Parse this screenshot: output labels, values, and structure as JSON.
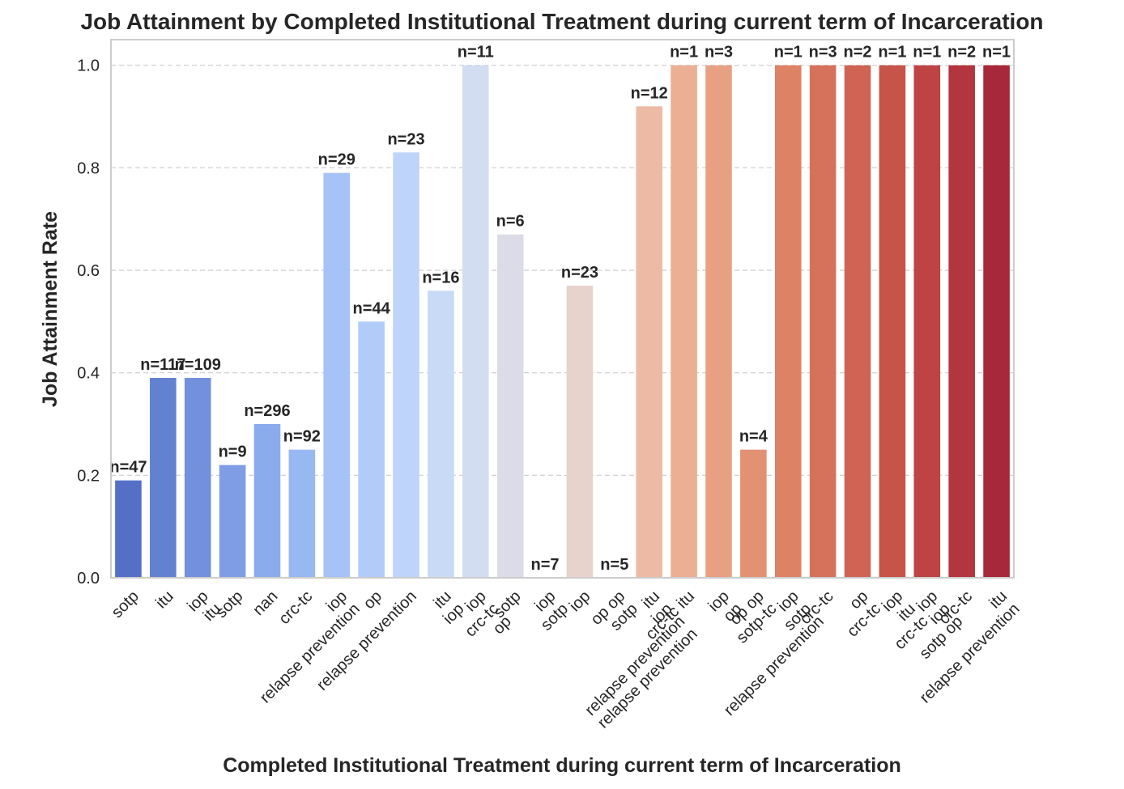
{
  "chart_data": {
    "type": "bar",
    "title": "Job Attainment by Completed Institutional Treatment during current term of Incarceration",
    "xlabel": "Completed Institutional Treatment during current term of Incarceration",
    "ylabel": "Job Attainment Rate",
    "ylim": [
      0,
      1.05
    ],
    "yticks": [
      "0.0",
      "0.2",
      "0.4",
      "0.6",
      "0.8",
      "1.0"
    ],
    "grid": "y-dashed",
    "categories": [
      "sotp",
      "itu",
      "iop\nitu",
      "sotp",
      "nan",
      "crc-tc",
      "iop\nrelapse prevention",
      "op",
      "relapse prevention",
      "itu\niop",
      "iop\ncrc-tc\nop",
      "sotp",
      "iop\nsotp",
      "iop",
      "op op\nsotp",
      "itu\niop\nrelapse prevention\nrelapse prevention",
      "crc-tc itu",
      "iop\nop",
      "op op\nsotp-tc",
      "iop\nsotp\nrelapse prevention",
      "crc-tc",
      "op\ncrc-tc",
      "iop\nitu\ncrc-tc",
      "iop\niop\nsotp op",
      "crc-tc",
      "itu\nrelapse prevention"
    ],
    "values": [
      0.19,
      0.39,
      0.39,
      0.22,
      0.3,
      0.25,
      0.79,
      0.5,
      0.83,
      0.56,
      1.0,
      0.67,
      0.0,
      0.57,
      0.0,
      0.92,
      1.0,
      1.0,
      0.25,
      1.0,
      1.0,
      1.0,
      1.0,
      1.0,
      1.0,
      1.0
    ],
    "data_labels": [
      "n=47",
      "n=117",
      "n=109",
      "n=9",
      "n=296",
      "n=92",
      "n=29",
      "n=44",
      "n=23",
      "n=16",
      "n=11",
      "n=6",
      "n=7",
      "n=23",
      "n=5",
      "n=12",
      "n=1",
      "n=3",
      "n=4",
      "n=1",
      "n=3",
      "n=2",
      "n=1",
      "n=1",
      "n=2",
      "n=1"
    ],
    "colors": [
      "#5470c6",
      "#6381d1",
      "#7290dc",
      "#7f9de4",
      "#8bacec",
      "#98b8f2",
      "#a5c3f6",
      "#b2ccf9",
      "#bfd4fa",
      "#c9daf7",
      "#d3ddf1",
      "#dcdce8",
      "#e2d9d9",
      "#e8d3cc",
      "#ecc7b7",
      "#edbba5",
      "#ecaf94",
      "#e8a083",
      "#e39173",
      "#de8266",
      "#d6725c",
      "#cf6354",
      "#c65449",
      "#bd4442",
      "#b3353d",
      "#a7283a"
    ]
  }
}
